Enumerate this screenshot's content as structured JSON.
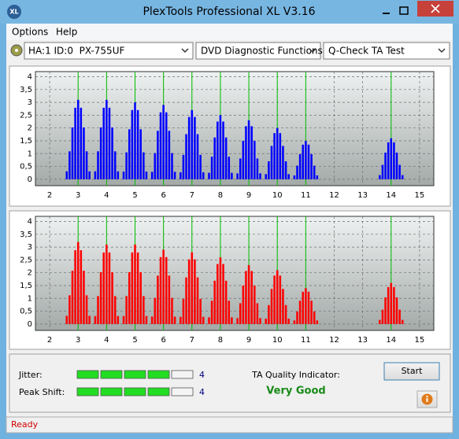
{
  "window": {
    "title": "PlexTools Professional XL V3.16",
    "icon_text": "XL"
  },
  "menu": [
    "Options",
    "Help"
  ],
  "toolbar": {
    "drive": "HA:1 ID:0  PX-755UF",
    "function": "DVD Diagnostic Functions",
    "test": "Q-Check TA Test"
  },
  "chart_data": [
    {
      "type": "bar",
      "color": "#0000ff",
      "grid": true,
      "xlim": [
        1.5,
        15.5
      ],
      "ylim": [
        -0.25,
        4.2
      ],
      "xticks": [
        2,
        3,
        4,
        5,
        6,
        7,
        8,
        9,
        10,
        11,
        12,
        13,
        14,
        15
      ],
      "yticks": [
        0,
        {
          "value": 0.5,
          "label": "0,5"
        },
        1,
        {
          "value": 1.5,
          "label": "1,5"
        },
        2,
        {
          "value": 2.5,
          "label": "2,5"
        },
        3,
        {
          "value": 3.5,
          "label": "3,5"
        },
        4
      ],
      "reference_lines": {
        "color": "#00c000",
        "x": [
          3,
          4,
          5,
          6,
          7,
          8,
          9,
          10,
          11,
          14
        ]
      },
      "x": [
        2.6,
        2.7,
        2.8,
        2.9,
        3,
        3.1,
        3.2,
        3.3,
        3.4,
        3.6,
        3.7,
        3.8,
        3.9,
        4,
        4.1,
        4.2,
        4.3,
        4.4,
        4.6,
        4.7,
        4.8,
        4.9,
        5,
        5.1,
        5.2,
        5.3,
        5.4,
        5.6,
        5.7,
        5.8,
        5.9,
        6,
        6.1,
        6.2,
        6.3,
        6.4,
        6.6,
        6.7,
        6.8,
        6.9,
        7,
        7.1,
        7.2,
        7.3,
        7.4,
        7.6,
        7.7,
        7.8,
        7.9,
        8,
        8.1,
        8.2,
        8.3,
        8.4,
        8.6,
        8.7,
        8.8,
        8.9,
        9,
        9.1,
        9.2,
        9.3,
        9.4,
        9.6,
        9.7,
        9.8,
        9.9,
        10,
        10.1,
        10.2,
        10.3,
        10.4,
        10.6,
        10.7,
        10.8,
        10.9,
        11,
        11.1,
        11.2,
        11.3,
        11.4,
        13.6,
        13.7,
        13.8,
        13.9,
        14,
        14.1,
        14.2,
        14.3,
        14.4
      ],
      "values": [
        0.31,
        1.09,
        2.02,
        2.79,
        3.1,
        2.79,
        2.02,
        1.09,
        0.31,
        0.31,
        1.09,
        2.02,
        2.79,
        3.1,
        2.79,
        2.02,
        1.09,
        0.31,
        0.3,
        1.05,
        1.95,
        2.7,
        3.0,
        2.7,
        1.95,
        1.05,
        0.3,
        0.29,
        1.02,
        1.89,
        2.61,
        2.9,
        2.61,
        1.89,
        1.02,
        0.29,
        0.27,
        0.95,
        1.76,
        2.43,
        2.7,
        2.43,
        1.76,
        0.95,
        0.27,
        0.25,
        0.88,
        1.63,
        2.25,
        2.5,
        2.25,
        1.63,
        0.88,
        0.25,
        0.23,
        0.81,
        1.5,
        2.07,
        2.3,
        2.07,
        1.5,
        0.81,
        0.23,
        0.2,
        0.7,
        1.3,
        1.8,
        2.0,
        1.8,
        1.3,
        0.7,
        0.2,
        0.15,
        0.53,
        0.98,
        1.35,
        1.5,
        1.35,
        0.98,
        0.53,
        0.15,
        0.16,
        0.56,
        1.04,
        1.44,
        1.6,
        1.44,
        1.04,
        0.56,
        0.16
      ]
    },
    {
      "type": "bar",
      "color": "#ff0000",
      "grid": true,
      "xlim": [
        1.5,
        15.5
      ],
      "ylim": [
        -0.25,
        4.2
      ],
      "xticks": [
        2,
        3,
        4,
        5,
        6,
        7,
        8,
        9,
        10,
        11,
        12,
        13,
        14,
        15
      ],
      "yticks": [
        0,
        {
          "value": 0.5,
          "label": "0,5"
        },
        1,
        {
          "value": 1.5,
          "label": "1,5"
        },
        2,
        {
          "value": 2.5,
          "label": "2,5"
        },
        3,
        {
          "value": 3.5,
          "label": "3,5"
        },
        4
      ],
      "reference_lines": {
        "color": "#00c000",
        "x": [
          3,
          4,
          5,
          6,
          7,
          8,
          9,
          10,
          11,
          14
        ]
      },
      "x": [
        2.6,
        2.7,
        2.8,
        2.9,
        3,
        3.1,
        3.2,
        3.3,
        3.4,
        3.6,
        3.7,
        3.8,
        3.9,
        4,
        4.1,
        4.2,
        4.3,
        4.4,
        4.6,
        4.7,
        4.8,
        4.9,
        5,
        5.1,
        5.2,
        5.3,
        5.4,
        5.6,
        5.7,
        5.8,
        5.9,
        6,
        6.1,
        6.2,
        6.3,
        6.4,
        6.6,
        6.7,
        6.8,
        6.9,
        7,
        7.1,
        7.2,
        7.3,
        7.4,
        7.6,
        7.7,
        7.8,
        7.9,
        8,
        8.1,
        8.2,
        8.3,
        8.4,
        8.6,
        8.7,
        8.8,
        8.9,
        9,
        9.1,
        9.2,
        9.3,
        9.4,
        9.6,
        9.7,
        9.8,
        9.9,
        10,
        10.1,
        10.2,
        10.3,
        10.4,
        10.6,
        10.7,
        10.8,
        10.9,
        11,
        11.1,
        11.2,
        11.3,
        11.4,
        13.6,
        13.7,
        13.8,
        13.9,
        14,
        14.1,
        14.2,
        14.3,
        14.4
      ],
      "values": [
        0.32,
        1.12,
        2.08,
        2.88,
        3.2,
        2.88,
        2.08,
        1.12,
        0.32,
        0.31,
        1.09,
        2.02,
        2.79,
        3.1,
        2.79,
        2.02,
        1.09,
        0.31,
        0.31,
        1.09,
        2.02,
        2.79,
        3.1,
        2.79,
        2.02,
        1.09,
        0.31,
        0.29,
        1.02,
        1.89,
        2.61,
        2.9,
        2.61,
        1.89,
        1.02,
        0.29,
        0.28,
        0.98,
        1.82,
        2.52,
        2.8,
        2.52,
        1.82,
        0.98,
        0.28,
        0.26,
        0.91,
        1.69,
        2.34,
        2.6,
        2.34,
        1.69,
        0.91,
        0.26,
        0.23,
        0.81,
        1.5,
        2.07,
        2.3,
        2.07,
        1.5,
        0.81,
        0.23,
        0.21,
        0.74,
        1.37,
        1.89,
        2.1,
        1.89,
        1.37,
        0.74,
        0.21,
        0.14,
        0.49,
        0.91,
        1.26,
        1.4,
        1.26,
        0.91,
        0.49,
        0.14,
        0.16,
        0.56,
        1.04,
        1.44,
        1.6,
        1.44,
        1.04,
        0.56,
        0.16
      ]
    }
  ],
  "results": {
    "jitter": {
      "label": "Jitter:",
      "value": 4
    },
    "peak_shift": {
      "label": "Peak Shift:",
      "value": 4
    },
    "ta_quality_label": "TA Quality Indicator:",
    "ta_quality": "Very Good"
  },
  "buttons": {
    "start": "Start"
  },
  "status": "Ready"
}
